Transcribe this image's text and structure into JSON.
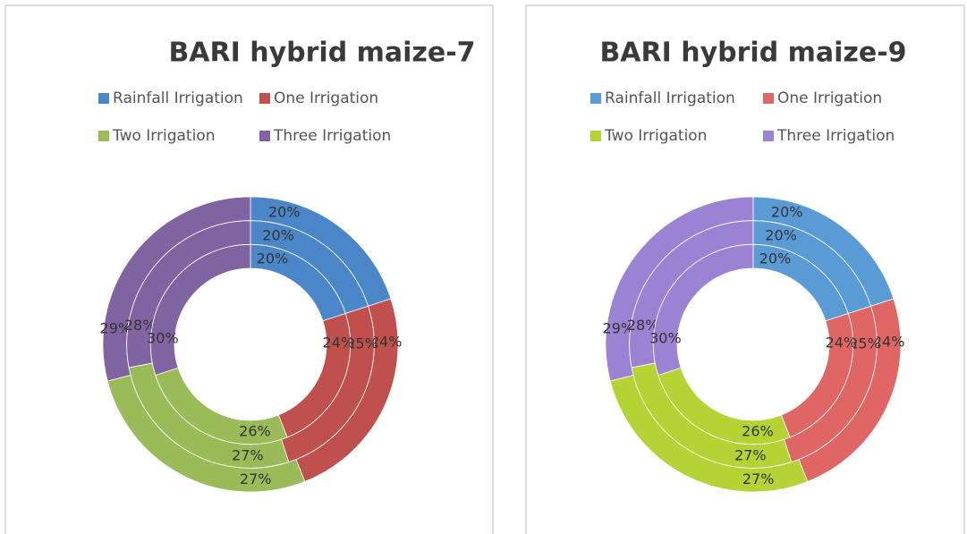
{
  "chart_data": [
    {
      "type": "doughnut",
      "title": "BARI hybrid maize-7",
      "categories": [
        "Rainfall Irrigation",
        "One Irrigation",
        "Two Irrigation",
        "Three Irrigation"
      ],
      "colors": [
        "#4a86c8",
        "#c0504d",
        "#9bbb59",
        "#8064a2"
      ],
      "rings": [
        {
          "values": [
            20,
            24,
            27,
            29
          ],
          "value_labels": [
            "20%",
            "24%",
            "27%",
            "29%"
          ]
        },
        {
          "values": [
            20,
            25,
            27,
            28
          ],
          "value_labels": [
            "20%",
            "25%",
            "27%",
            "28%"
          ]
        },
        {
          "values": [
            20,
            24,
            26,
            30
          ],
          "value_labels": [
            "20%",
            "24%",
            "26%",
            "30%"
          ]
        }
      ]
    },
    {
      "type": "doughnut",
      "title": "BARI hybrid maize-9",
      "categories": [
        "Rainfall Irrigation",
        "One Irrigation",
        "Two Irrigation",
        "Three Irrigation"
      ],
      "colors": [
        "#5b9bd5",
        "#e06666",
        "#b5d334",
        "#9b82d2"
      ],
      "rings": [
        {
          "values": [
            20,
            24,
            27,
            29
          ],
          "value_labels": [
            "20%",
            "24%",
            "27%",
            "29%"
          ]
        },
        {
          "values": [
            20,
            25,
            27,
            28
          ],
          "value_labels": [
            "20%",
            "25%",
            "27%",
            "28%"
          ]
        },
        {
          "values": [
            20,
            24,
            26,
            30
          ],
          "value_labels": [
            "20%",
            "24%",
            "26%",
            "30%"
          ]
        }
      ]
    }
  ]
}
